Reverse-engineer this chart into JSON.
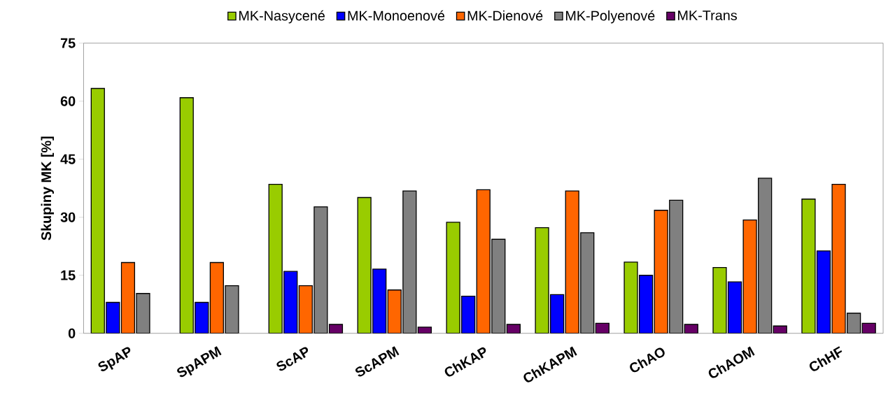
{
  "chart_data": {
    "type": "bar",
    "ylabel": "Skupiny MK  [%]",
    "categories": [
      "SpAP",
      "SpAPM",
      "ScAP",
      "ScAPM",
      "ChKAP",
      "ChKAPM",
      "ChAO",
      "ChAOM",
      "ChHF"
    ],
    "series": [
      {
        "name": "MK-Nasycené",
        "color": "#99cc00",
        "values": [
          63.3,
          60.9,
          38.5,
          35.1,
          28.7,
          27.3,
          18.4,
          17.0,
          34.7
        ]
      },
      {
        "name": "MK-Monoenové",
        "color": "#0000ff",
        "values": [
          8.0,
          8.0,
          16.0,
          16.6,
          9.6,
          10.0,
          15.0,
          13.3,
          21.3
        ]
      },
      {
        "name": "MK-Dienové",
        "color": "#ff6600",
        "values": [
          18.3,
          18.3,
          12.3,
          11.2,
          37.1,
          36.8,
          31.8,
          29.3,
          38.5
        ]
      },
      {
        "name": "MK-Polyenové",
        "color": "#808080",
        "values": [
          10.3,
          12.3,
          32.7,
          36.8,
          24.3,
          26.0,
          34.4,
          40.1,
          5.2
        ]
      },
      {
        "name": "MK-Trans",
        "color": "#660066",
        "values": [
          null,
          null,
          2.3,
          1.6,
          2.3,
          2.6,
          2.3,
          1.9,
          2.6
        ]
      }
    ],
    "ylim": [
      0,
      75
    ],
    "yticks": [
      0,
      15,
      30,
      45,
      60,
      75
    ],
    "legend": "top"
  }
}
